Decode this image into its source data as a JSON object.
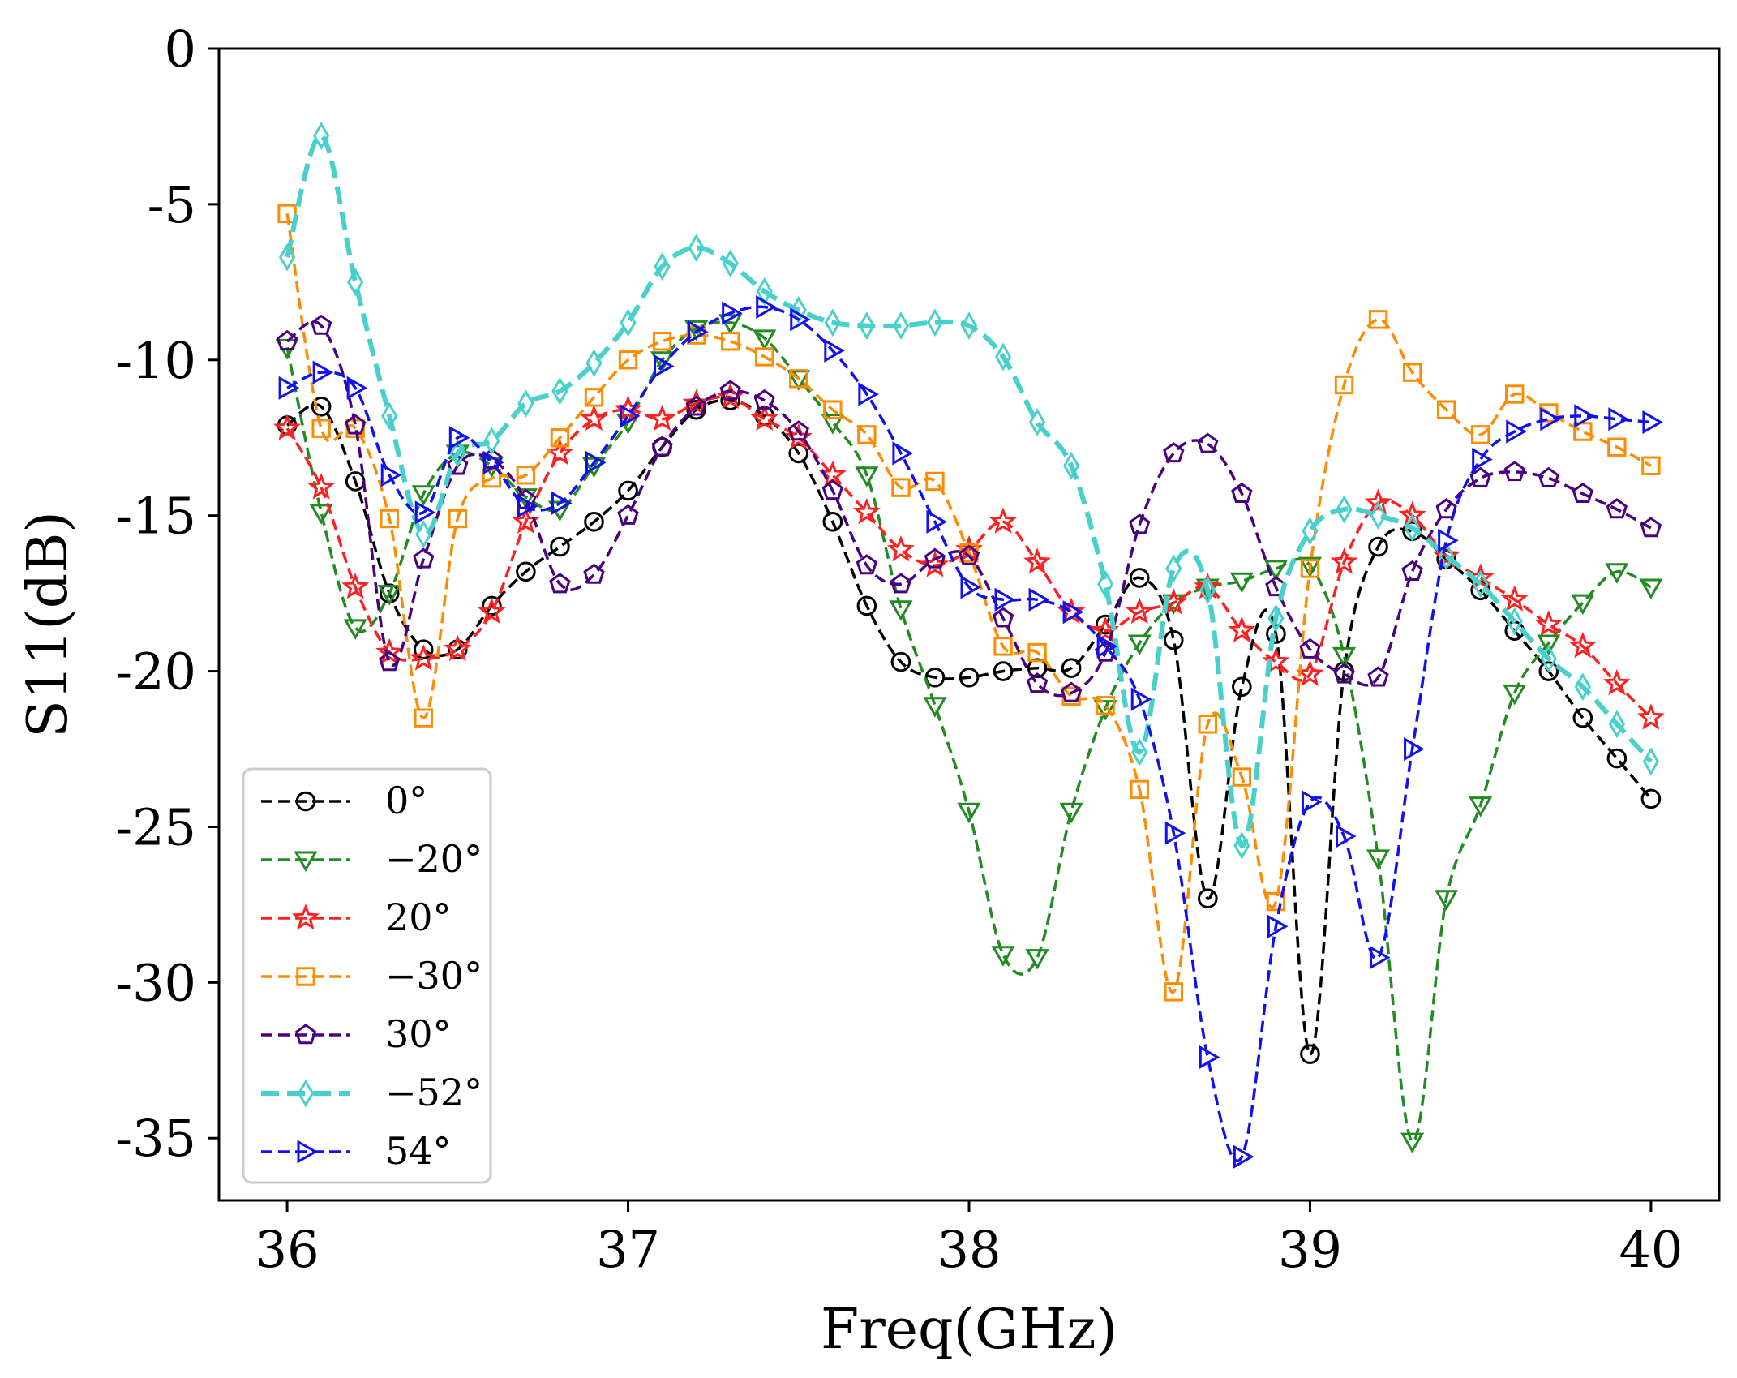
{
  "chart_data": {
    "type": "line",
    "title": "",
    "xlabel": "Freq(GHz)",
    "ylabel": "S11(dB)",
    "xlim": [
      35.8,
      40.2
    ],
    "ylim": [
      -37,
      0
    ],
    "xticks": [
      36,
      37,
      38,
      39,
      40
    ],
    "xtick_labels": [
      "36",
      "37",
      "38",
      "39",
      "40"
    ],
    "yticks": [
      0,
      -5,
      -10,
      -15,
      -20,
      -25,
      -30,
      -35
    ],
    "ytick_labels": [
      "0",
      "-5",
      "-10",
      "-15",
      "-20",
      "-25",
      "-30",
      "-35"
    ],
    "grid": false,
    "legend_position": "bottom-left",
    "x": [
      36.0,
      36.1,
      36.2,
      36.3,
      36.4,
      36.5,
      36.6,
      36.7,
      36.8,
      36.9,
      37.0,
      37.1,
      37.2,
      37.3,
      37.4,
      37.5,
      37.6,
      37.7,
      37.8,
      37.9,
      38.0,
      38.1,
      38.2,
      38.3,
      38.4,
      38.5,
      38.6,
      38.7,
      38.8,
      38.9,
      39.0,
      39.1,
      39.2,
      39.3,
      39.4,
      39.5,
      39.6,
      39.7,
      39.8,
      39.9,
      40.0
    ],
    "series": [
      {
        "name": "0°",
        "color": "#000000",
        "marker": "circle",
        "dash": "thin",
        "values": [
          -12.1,
          -11.5,
          -13.9,
          -17.5,
          -19.3,
          -19.3,
          -17.9,
          -16.8,
          -16.0,
          -15.2,
          -14.2,
          -12.8,
          -11.6,
          -11.3,
          -11.8,
          -13.0,
          -15.2,
          -17.9,
          -19.7,
          -20.2,
          -20.2,
          -20.0,
          -19.9,
          -19.9,
          -18.5,
          -17.0,
          -19.0,
          -27.3,
          -20.5,
          -18.8,
          -32.3,
          -20.0,
          -16.0,
          -15.5,
          -16.4,
          -17.4,
          -18.7,
          -20.0,
          -21.5,
          -22.8,
          -24.1
        ]
      },
      {
        "name": "−20°",
        "color": "#228b22",
        "marker": "triangle-down",
        "dash": "thin",
        "values": [
          -9.6,
          -14.9,
          -18.6,
          -17.5,
          -14.3,
          -13.0,
          -13.4,
          -14.4,
          -14.8,
          -13.4,
          -12.0,
          -10.0,
          -9.0,
          -8.8,
          -9.3,
          -10.6,
          -12.0,
          -13.7,
          -18.0,
          -21.1,
          -24.5,
          -29.1,
          -29.2,
          -24.5,
          -21.2,
          -19.1,
          -17.8,
          -17.3,
          -17.1,
          -16.7,
          -16.6,
          -19.5,
          -26.0,
          -35.1,
          -27.3,
          -24.3,
          -20.7,
          -19.1,
          -17.8,
          -16.8,
          -17.3
        ]
      },
      {
        "name": "20°",
        "color": "#ff2020",
        "marker": "star",
        "dash": "thin",
        "values": [
          -12.2,
          -14.1,
          -17.3,
          -19.4,
          -19.6,
          -19.3,
          -18.1,
          -15.2,
          -13.0,
          -11.9,
          -11.6,
          -11.9,
          -11.4,
          -11.2,
          -11.9,
          -12.5,
          -13.7,
          -14.9,
          -16.1,
          -16.6,
          -16.1,
          -15.2,
          -16.5,
          -18.1,
          -18.7,
          -18.1,
          -17.8,
          -17.3,
          -18.7,
          -19.7,
          -20.1,
          -16.5,
          -14.6,
          -15.0,
          -16.3,
          -17.0,
          -17.7,
          -18.5,
          -19.2,
          -20.4,
          -21.5
        ]
      },
      {
        "name": "−30°",
        "color": "#ff8c00",
        "marker": "square",
        "dash": "thin",
        "values": [
          -5.3,
          -12.2,
          -12.2,
          -15.1,
          -21.5,
          -15.1,
          -13.8,
          -13.7,
          -12.5,
          -11.2,
          -10.0,
          -9.4,
          -9.2,
          -9.4,
          -9.9,
          -10.6,
          -11.6,
          -12.4,
          -14.1,
          -13.9,
          -16.2,
          -19.2,
          -19.4,
          -20.8,
          -21.1,
          -23.8,
          -30.3,
          -21.7,
          -23.4,
          -27.4,
          -16.7,
          -10.8,
          -8.7,
          -10.4,
          -11.6,
          -12.4,
          -11.1,
          -11.7,
          -12.3,
          -12.8,
          -13.4
        ]
      },
      {
        "name": "30°",
        "color": "#4b0082",
        "marker": "pentagon",
        "dash": "thin",
        "values": [
          -9.4,
          -8.9,
          -12.1,
          -19.7,
          -16.4,
          -13.4,
          -13.2,
          -14.5,
          -17.2,
          -16.9,
          -15.0,
          -12.8,
          -11.5,
          -11.0,
          -11.3,
          -12.3,
          -14.2,
          -16.6,
          -17.2,
          -16.4,
          -16.3,
          -18.3,
          -20.4,
          -20.7,
          -19.4,
          -15.3,
          -13.0,
          -12.7,
          -14.3,
          -17.3,
          -19.3,
          -20.1,
          -20.2,
          -16.8,
          -14.8,
          -13.8,
          -13.6,
          -13.8,
          -14.3,
          -14.8,
          -15.4
        ]
      },
      {
        "name": "−52°",
        "color": "#48d1cc",
        "marker": "diamond",
        "dash": "thick",
        "values": [
          -6.7,
          -2.8,
          -7.5,
          -11.8,
          -15.6,
          -13.0,
          -12.6,
          -11.4,
          -11.0,
          -10.1,
          -8.8,
          -7.0,
          -6.4,
          -6.9,
          -7.8,
          -8.4,
          -8.8,
          -8.9,
          -8.9,
          -8.8,
          -8.9,
          -9.9,
          -12.0,
          -13.4,
          -17.2,
          -22.6,
          -16.7,
          -17.4,
          -25.6,
          -18.3,
          -15.5,
          -14.8,
          -15.0,
          -15.4,
          -16.3,
          -17.2,
          -18.4,
          -19.6,
          -20.5,
          -21.7,
          -22.9
        ]
      },
      {
        "name": "54°",
        "color": "#1010f0",
        "marker": "triangle-right",
        "dash": "thin",
        "values": [
          -10.9,
          -10.4,
          -10.9,
          -13.7,
          -14.9,
          -12.5,
          -13.3,
          -14.7,
          -14.6,
          -13.3,
          -11.8,
          -10.2,
          -9.1,
          -8.5,
          -8.3,
          -8.7,
          -9.7,
          -11.1,
          -13.0,
          -15.2,
          -17.3,
          -17.7,
          -17.7,
          -18.1,
          -19.2,
          -20.9,
          -25.2,
          -32.4,
          -35.6,
          -28.2,
          -24.2,
          -25.3,
          -29.2,
          -22.5,
          -15.8,
          -13.2,
          -12.3,
          -11.9,
          -11.8,
          -11.9,
          -12.0
        ]
      }
    ]
  }
}
